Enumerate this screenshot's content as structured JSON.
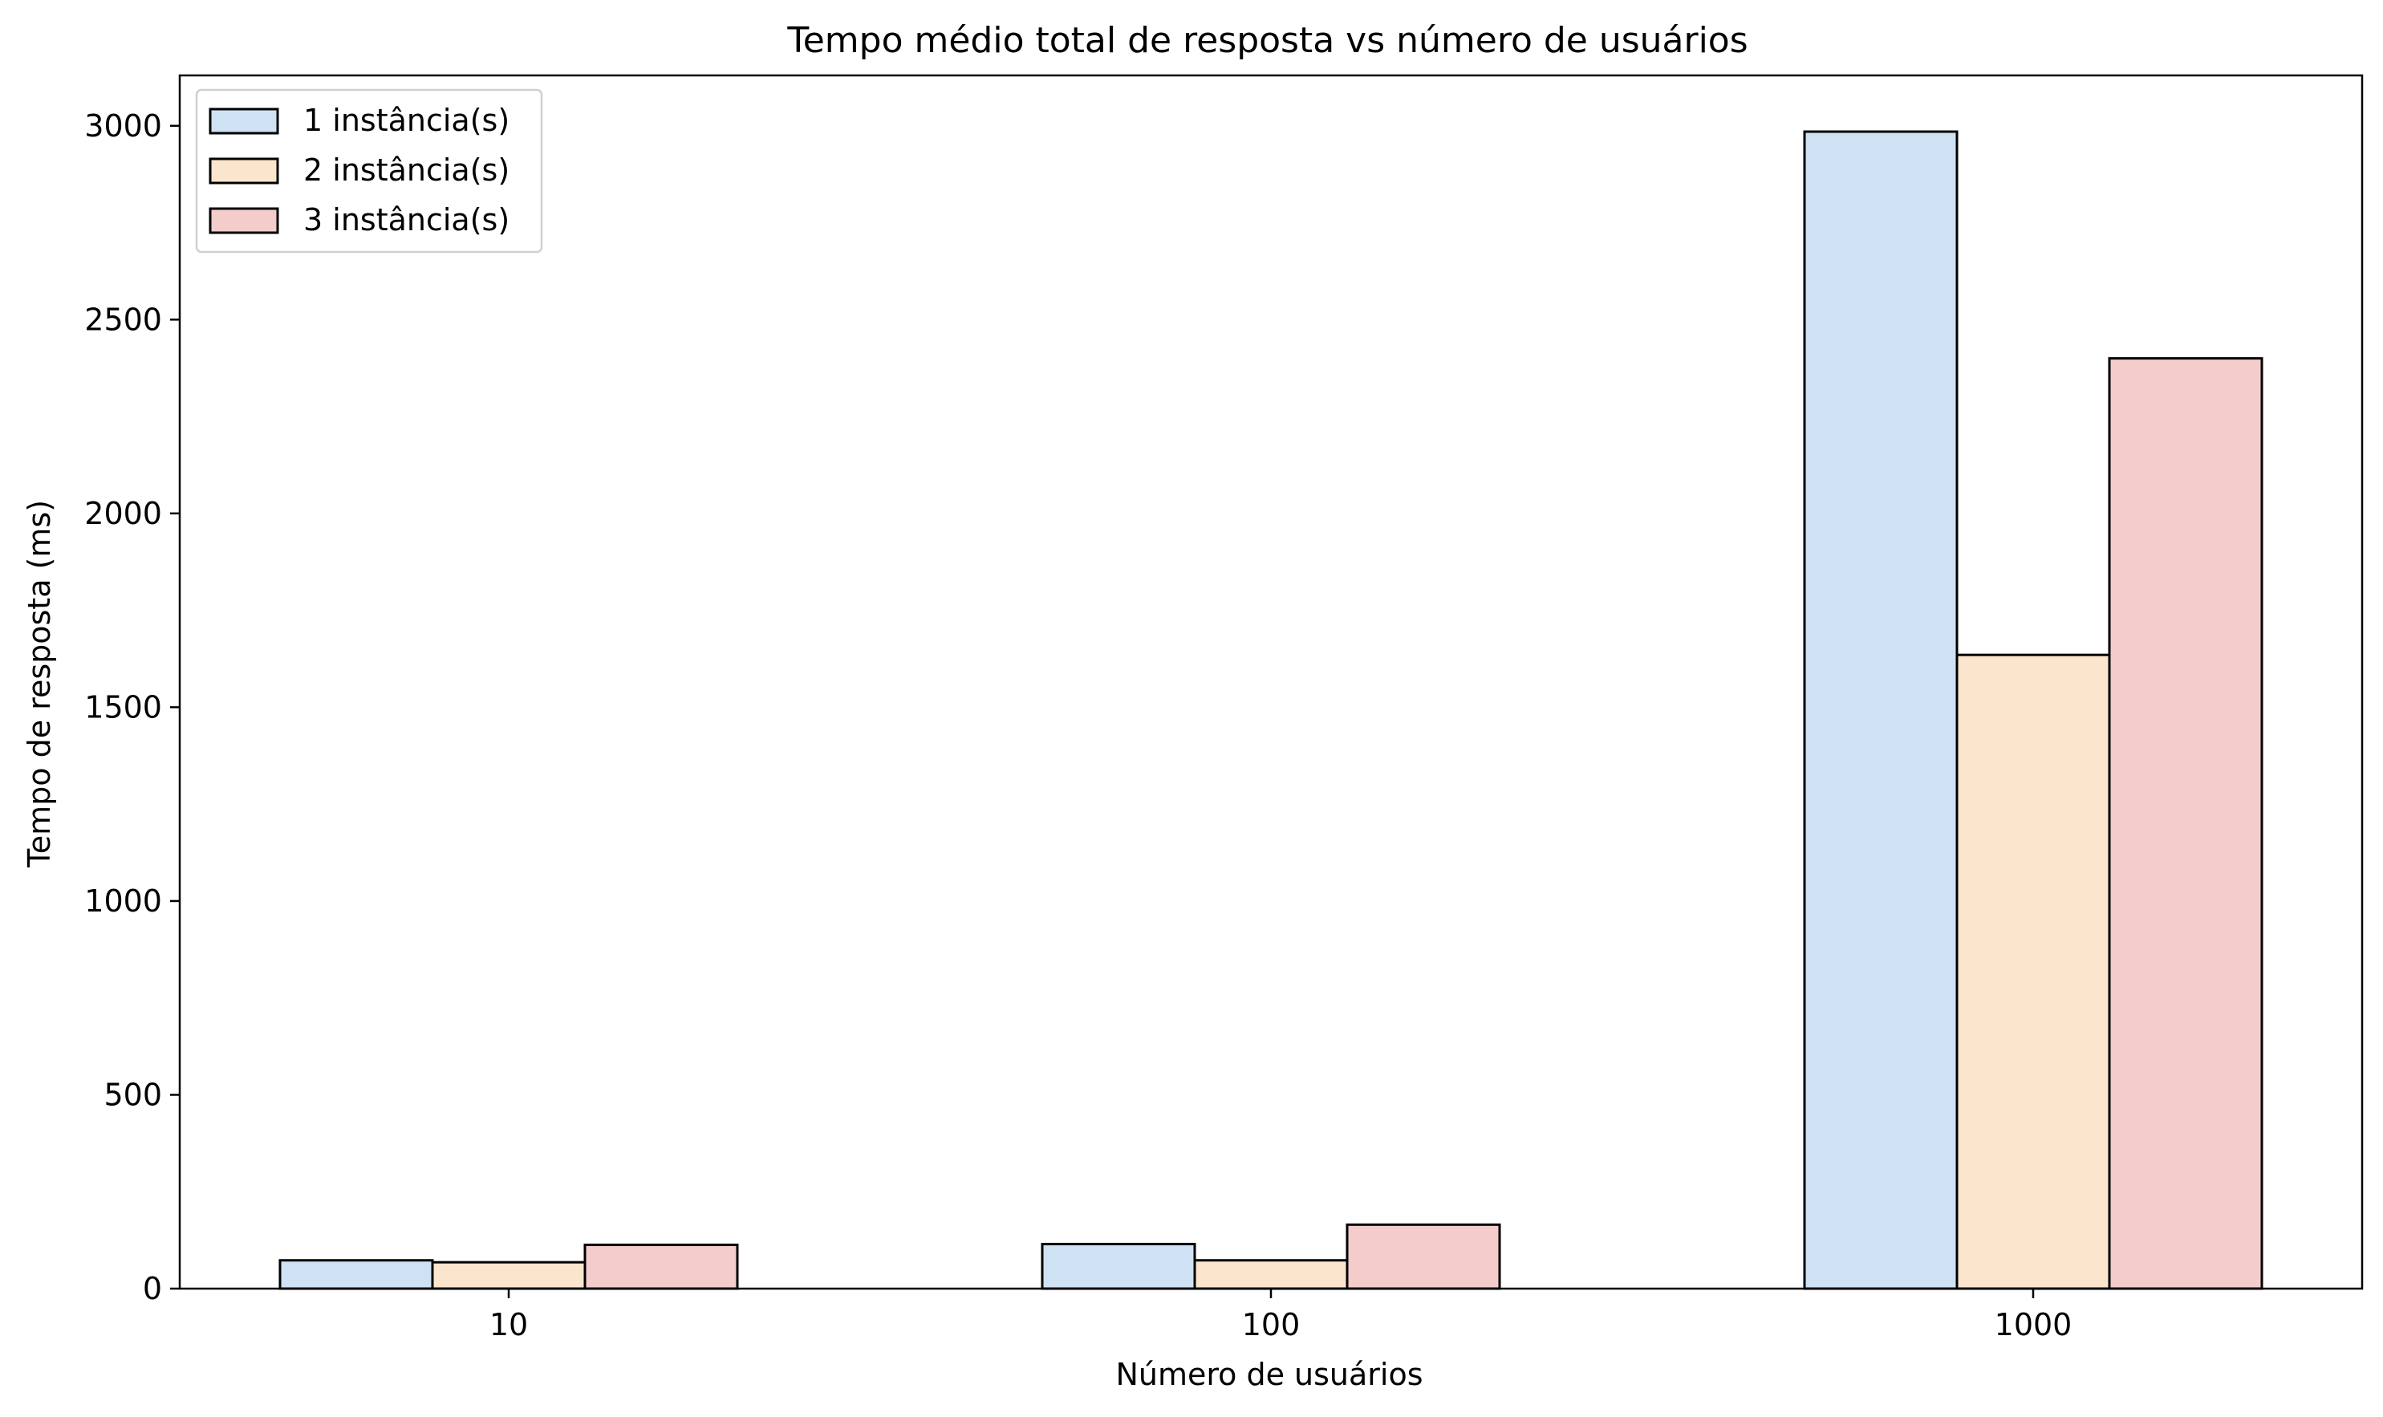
{
  "chart_data": {
    "type": "bar",
    "title": "Tempo médio total de resposta vs número de usuários",
    "xlabel": "Número de usuários",
    "ylabel": "Tempo de resposta (ms)",
    "categories": [
      "10",
      "100",
      "1000"
    ],
    "series": [
      {
        "name": "1 instância(s)",
        "color": "#cfe2f3",
        "values": [
          73,
          115,
          2985
        ]
      },
      {
        "name": "2 instância(s)",
        "color": "#fce5cd",
        "values": [
          68,
          73,
          1635
        ]
      },
      {
        "name": "3 instância(s)",
        "color": "#f4cccc",
        "values": [
          113,
          165,
          2400
        ]
      }
    ],
    "ylim": [
      0,
      3130
    ],
    "yticks": [
      0,
      500,
      1000,
      1500,
      2000,
      2500,
      3000
    ],
    "grid": false,
    "legend_position": "top-left",
    "edge_color": "#000000"
  }
}
